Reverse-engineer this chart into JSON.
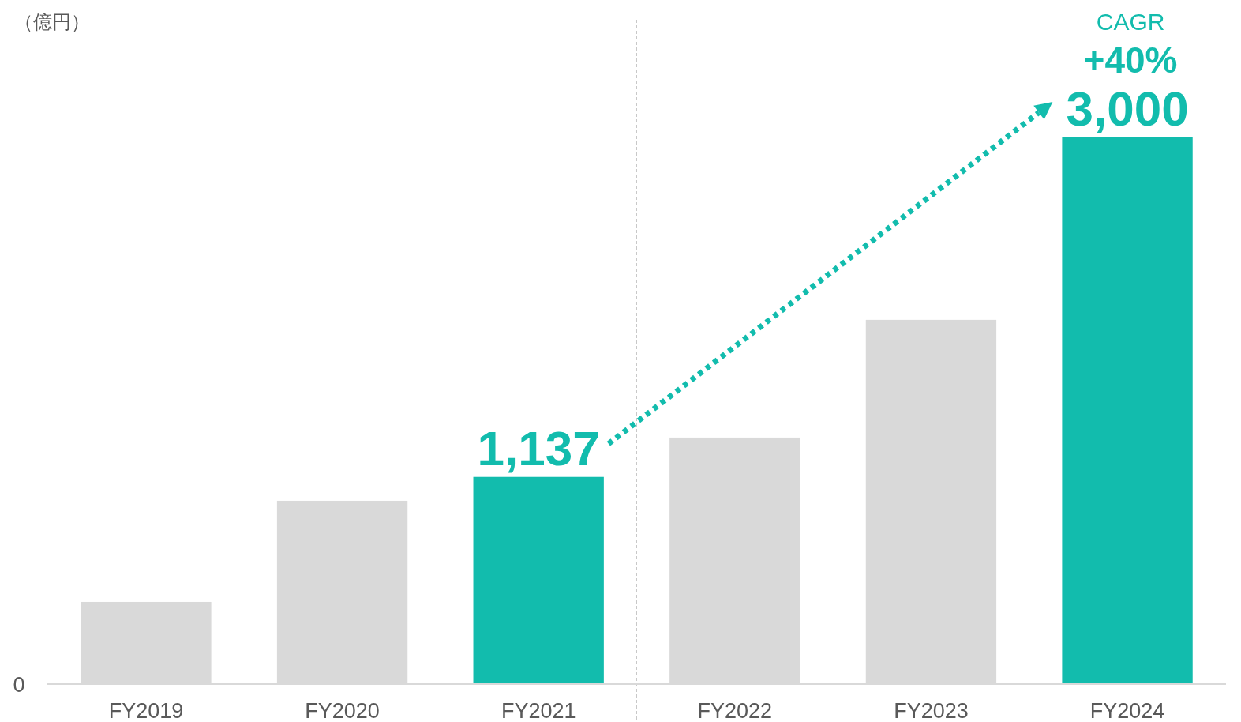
{
  "chart_data": {
    "type": "bar",
    "categories": [
      "FY2019",
      "FY2020",
      "FY2021",
      "FY2022",
      "FY2023",
      "FY2024"
    ],
    "values": [
      451,
      1006,
      1137,
      1353,
      1999,
      3000
    ],
    "colors": [
      "#d9d9d9",
      "#d9d9d9",
      "#12bcad",
      "#d9d9d9",
      "#d9d9d9",
      "#12bcad"
    ],
    "value_labels": [
      null,
      null,
      "1,137",
      null,
      null,
      "3,000"
    ],
    "annotations": [
      "（億円）",
      "CAGR",
      "+40%",
      "0"
    ]
  }
}
